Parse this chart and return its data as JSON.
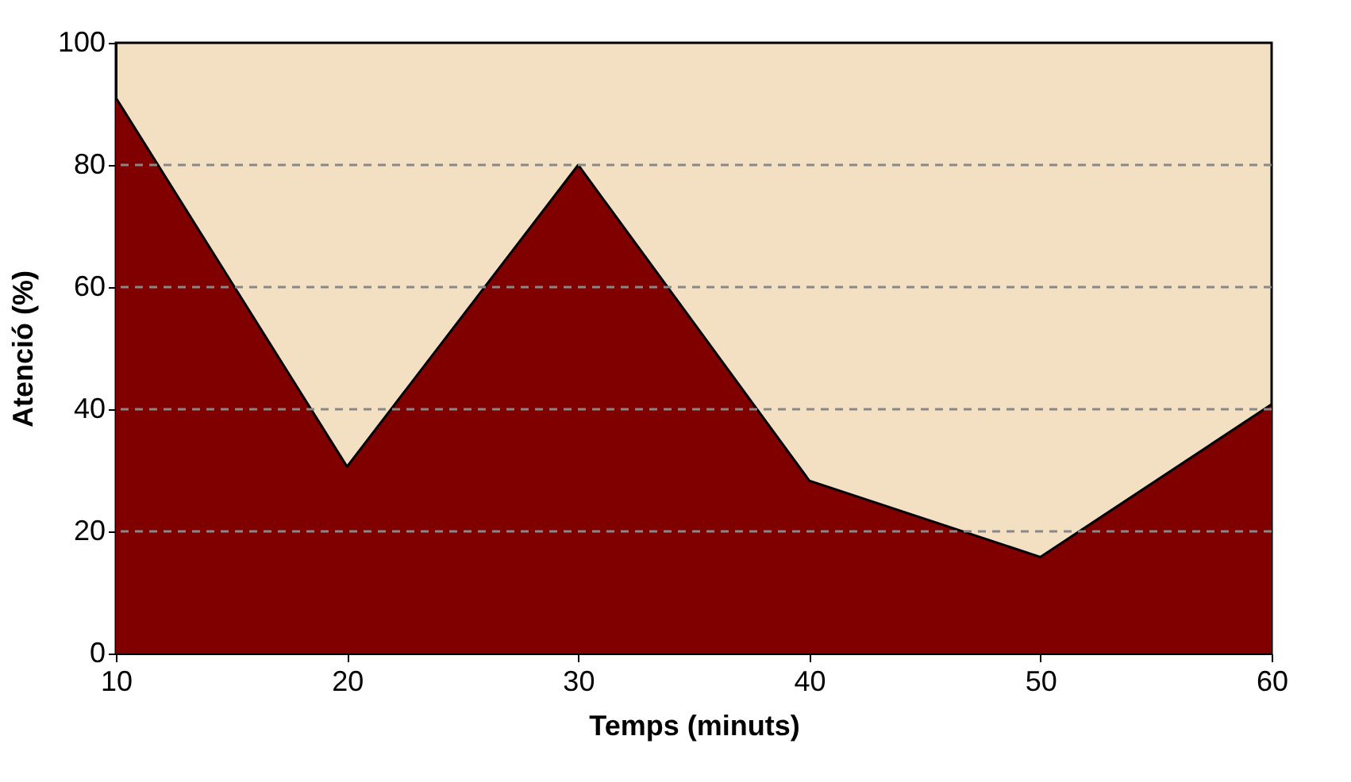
{
  "chart_data": {
    "type": "area",
    "xlabel": "Temps (minuts)",
    "ylabel": "Atenció (%)",
    "x": [
      10,
      20,
      30,
      40,
      50,
      60
    ],
    "series": [
      {
        "color": "#800000",
        "values": [
          91,
          30.6,
          80,
          28.3,
          15.8,
          40.8
        ]
      }
    ],
    "xlim": [
      10,
      60
    ],
    "xticks": [
      10,
      20,
      30,
      40,
      50,
      60
    ],
    "ylim": [
      0,
      100
    ],
    "yticks": [
      0,
      20,
      40,
      60,
      80,
      100
    ],
    "grid": "y"
  }
}
